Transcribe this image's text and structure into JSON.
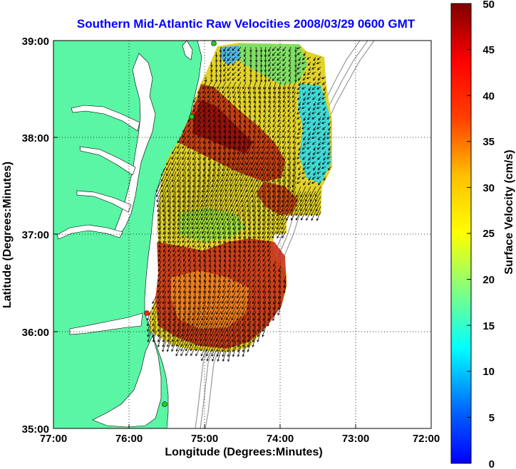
{
  "title": "Southern Mid-Atlantic Raw Velocities 2008/03/29 0600 GMT",
  "chart_data": {
    "type": "heatmap",
    "title": "Southern Mid-Atlantic Raw Velocities 2008/03/29 0600 GMT",
    "xlabel": "Longitude (Degrees:Minutes)",
    "ylabel": "Latitude (Degrees:Minutes)",
    "colorbar_label": "Surface Velocity (cm/s)",
    "x_ticks": [
      "77:00",
      "76:00",
      "75:00",
      "74:00",
      "73:00",
      "72:00"
    ],
    "y_ticks": [
      "39:00",
      "38:00",
      "37:00",
      "36:00",
      "35:00"
    ],
    "xlim": [
      -77,
      -72
    ],
    "ylim": [
      35,
      39
    ],
    "clim": [
      0,
      50
    ],
    "colorbar_ticks": [
      "50",
      "45",
      "40",
      "35",
      "30",
      "25",
      "20",
      "15",
      "10",
      "5",
      "0"
    ],
    "colormap": "jet",
    "grid": true,
    "land_color": "#5af5a5",
    "ocean_color": "#ffffff",
    "bathymetry_color": "#999999",
    "arrow_color": "#000000",
    "station_color": "#22cc22"
  }
}
